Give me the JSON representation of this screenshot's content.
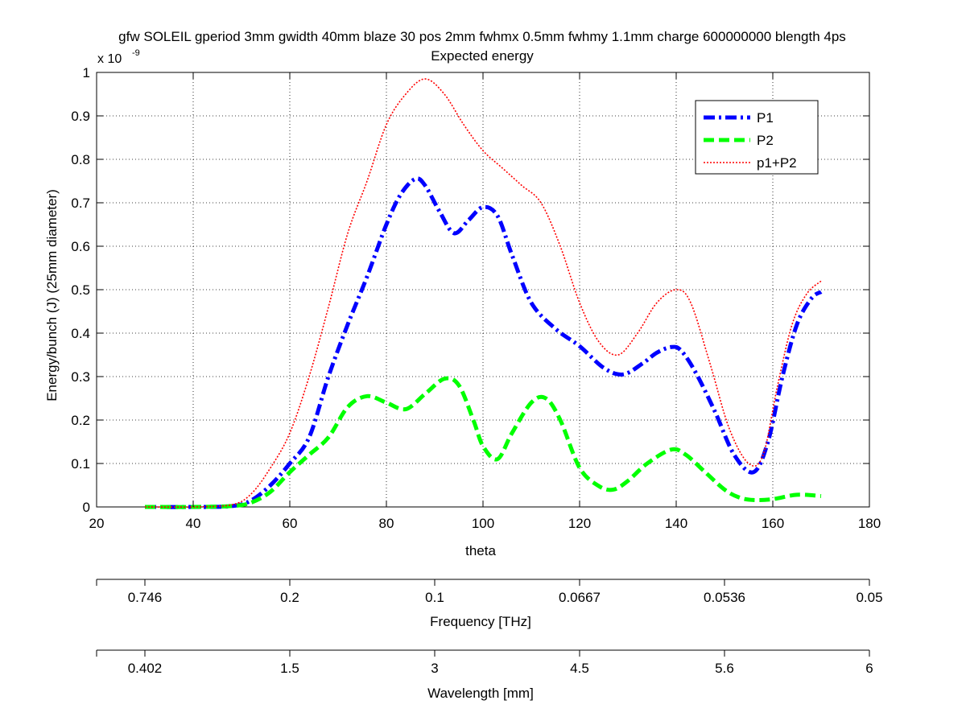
{
  "chart_data": {
    "type": "line",
    "title": "gfw SOLEIL gperiod 3mm gwidth 40mm blaze 30 pos 2mm fwhmx 0.5mm fwhmy 1.1mm charge 600000000 blength 4ps",
    "subtitle": "Expected energy",
    "xlabel": "theta",
    "ylabel": "Energy/bunch (J) (25mm diameter)",
    "y_exponent_label": "x 10",
    "y_exponent_power": "-9",
    "xlim": [
      20,
      180
    ],
    "ylim": [
      0,
      1
    ],
    "grid": true,
    "legend_position": "top-right",
    "x_ticks": [
      "20",
      "40",
      "60",
      "80",
      "100",
      "120",
      "140",
      "160",
      "180"
    ],
    "y_ticks": [
      "0",
      "0.1",
      "0.2",
      "0.3",
      "0.4",
      "0.5",
      "0.6",
      "0.7",
      "0.8",
      "0.9",
      "1"
    ],
    "secondary_axes": [
      {
        "label": "Frequency [THz]",
        "ticks": [
          {
            "theta": 30,
            "label": "0.746"
          },
          {
            "theta": 60,
            "label": "0.2"
          },
          {
            "theta": 90,
            "label": "0.1"
          },
          {
            "theta": 120,
            "label": "0.0667"
          },
          {
            "theta": 150,
            "label": "0.0536"
          },
          {
            "theta": 180,
            "label": "0.05"
          }
        ]
      },
      {
        "label": "Wavelength [mm]",
        "ticks": [
          {
            "theta": 30,
            "label": "0.402"
          },
          {
            "theta": 60,
            "label": "1.5"
          },
          {
            "theta": 90,
            "label": "3"
          },
          {
            "theta": 120,
            "label": "4.5"
          },
          {
            "theta": 150,
            "label": "5.6"
          },
          {
            "theta": 180,
            "label": "6"
          }
        ]
      }
    ],
    "series": [
      {
        "name": "P1",
        "color": "#0000ff",
        "style": "dash-dot",
        "x": [
          30,
          40,
          48,
          52,
          56,
          60,
          64,
          68,
          72,
          76,
          80,
          83,
          86,
          88,
          91,
          94,
          97,
          100,
          103,
          106,
          110,
          115,
          120,
          125,
          129,
          133,
          136,
          139,
          141,
          144,
          148,
          152,
          156,
          159,
          162,
          165,
          168,
          170
        ],
        "values": [
          0,
          0,
          0.002,
          0.015,
          0.05,
          0.1,
          0.16,
          0.3,
          0.42,
          0.53,
          0.65,
          0.72,
          0.755,
          0.74,
          0.68,
          0.63,
          0.66,
          0.69,
          0.67,
          0.58,
          0.47,
          0.41,
          0.37,
          0.32,
          0.305,
          0.33,
          0.355,
          0.368,
          0.36,
          0.31,
          0.22,
          0.12,
          0.08,
          0.15,
          0.3,
          0.42,
          0.48,
          0.495
        ]
      },
      {
        "name": "P2",
        "color": "#00ff00",
        "style": "dashed",
        "x": [
          30,
          40,
          48,
          52,
          56,
          60,
          64,
          68,
          72,
          76,
          80,
          84,
          88,
          92,
          95,
          98,
          100,
          103,
          106,
          110,
          113,
          116,
          120,
          124,
          127,
          130,
          134,
          139,
          142,
          146,
          150,
          153,
          156,
          160,
          165,
          170
        ],
        "values": [
          0,
          0,
          0.002,
          0.01,
          0.035,
          0.08,
          0.12,
          0.16,
          0.23,
          0.255,
          0.24,
          0.225,
          0.26,
          0.295,
          0.28,
          0.2,
          0.14,
          0.11,
          0.17,
          0.24,
          0.25,
          0.2,
          0.09,
          0.048,
          0.04,
          0.06,
          0.1,
          0.132,
          0.12,
          0.08,
          0.04,
          0.022,
          0.016,
          0.018,
          0.028,
          0.025
        ]
      },
      {
        "name": "p1+P2",
        "color": "#ff0000",
        "style": "dotted",
        "x": [
          30,
          40,
          48,
          52,
          56,
          60,
          64,
          68,
          72,
          76,
          80,
          84,
          88,
          92,
          96,
          100,
          104,
          108,
          112,
          116,
          120,
          124,
          128,
          132,
          136,
          140,
          143,
          147,
          151,
          155,
          158,
          161,
          164,
          167,
          170
        ],
        "values": [
          0,
          0,
          0.005,
          0.03,
          0.09,
          0.17,
          0.3,
          0.46,
          0.63,
          0.75,
          0.88,
          0.95,
          0.985,
          0.95,
          0.88,
          0.82,
          0.78,
          0.74,
          0.7,
          0.6,
          0.47,
          0.38,
          0.35,
          0.4,
          0.47,
          0.5,
          0.47,
          0.33,
          0.18,
          0.1,
          0.12,
          0.28,
          0.42,
          0.49,
          0.52
        ]
      }
    ]
  }
}
